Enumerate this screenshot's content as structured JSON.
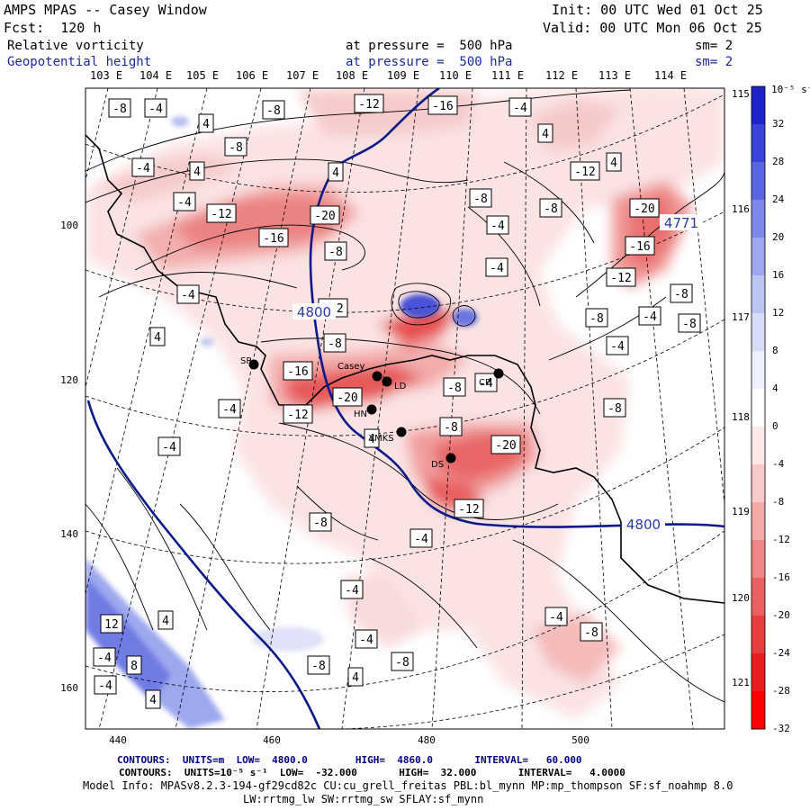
{
  "header": {
    "line1_left": "AMPS MPAS -- Casey Window",
    "line1_right": "Init: 00 UTC Wed 01 Oct 25",
    "line2_left": "Fcst:  120 h",
    "line2_right": "Valid: 00 UTC Mon 06 Oct 25",
    "field1_name": "Relative vorticity",
    "field1_level": "at pressure =  500 hPa",
    "field1_sm": "sm= 2",
    "field2_name": "Geopotential height",
    "field2_level": "at pressure =  500 hPa",
    "field2_sm": "sm= 2"
  },
  "lon_labels_top": [
    "103 E",
    "104 E",
    "105 E",
    "106 E",
    "107 E",
    "108 E",
    "109 E",
    "110 E",
    "111 E",
    "112 E",
    "113 E",
    "114 E"
  ],
  "lon_labels_right": [
    "115 E",
    "116 E",
    "117 E",
    "118 E",
    "119 E",
    "120 E",
    "121 E"
  ],
  "x_ticks": [
    "440",
    "460",
    "480",
    "500"
  ],
  "y_ticks": [
    "100",
    "120",
    "140",
    "160"
  ],
  "stations": [
    {
      "name": "SR"
    },
    {
      "name": "Casey"
    },
    {
      "name": "LD"
    },
    {
      "name": "CP"
    },
    {
      "name": "HN"
    },
    {
      "name": "YMKS"
    },
    {
      "name": "DS"
    }
  ],
  "height_labels": [
    "4800",
    "4800",
    "4771"
  ],
  "vorticity_labels": [
    "-8",
    "-4",
    "4",
    "-8",
    "-12",
    "-16",
    "-4",
    "4",
    "-8",
    "-4",
    "4",
    "-4",
    "4",
    "-12",
    "-20",
    "-16",
    "-8",
    "-8",
    "-4",
    "-12",
    "4",
    "-8",
    "-12",
    "-20",
    "-16",
    "-4",
    "-4",
    "-12",
    "-8",
    "-4",
    "-8",
    "-8",
    "-4",
    "4",
    "-16",
    "-8",
    "-8",
    "-12",
    "-4",
    "-8",
    "-20",
    "-4",
    "-8",
    "-20",
    "-12",
    "-4",
    "-4",
    "-8",
    "4",
    "-4",
    "-4",
    "-8",
    "4",
    "-8",
    "-8",
    "-4",
    "12",
    "4",
    "-4",
    "8",
    "-4",
    "4"
  ],
  "colorbar": {
    "unit": "10⁻⁵ s⁻¹",
    "ticks": [
      "32",
      "28",
      "24",
      "20",
      "16",
      "12",
      "8",
      "4",
      "0",
      "-4",
      "-8",
      "-12",
      "-16",
      "-20",
      "-24",
      "-28",
      "-32"
    ],
    "colors": [
      "#1f24c8",
      "#3a44d8",
      "#5a66e0",
      "#7d88e8",
      "#9ea8ee",
      "#bcc4f2",
      "#d8dcf8",
      "#eef0fb",
      "#ffffff",
      "#fde8e8",
      "#f9caca",
      "#f4a9a9",
      "#ee8686",
      "#e86060",
      "#e43e3e",
      "#e81e1e",
      "#ff0000"
    ]
  },
  "footer": {
    "contours1": "CONTOURS:  UNITS=m  LOW=  4800.0        HIGH=  4860.0       INTERVAL=   60.000",
    "contours2": "CONTOURS:  UNITS=10⁻⁵ s⁻¹  LOW=  -32.000       HIGH=  32.000       INTERVAL=   4.0000",
    "model_info": "Model Info: MPASv8.2.3-194-gf29cd82c CU:cu_grell_freitas PBL:bl_mynn MP:mp_thompson SF:sf_noahmp 8.0",
    "model_info2": "LW:rrtmg_lw SW:rrtmg_sw SFLAY:sf_mynn"
  }
}
